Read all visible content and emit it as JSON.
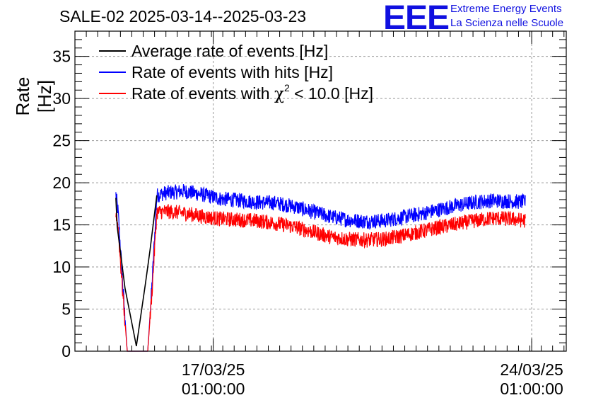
{
  "chart_data": {
    "type": "line",
    "title": "SALE-02 2025-03-14--2025-03-23",
    "xlabel": "",
    "ylabel": "Rate [Hz]",
    "ylim": [
      0,
      38
    ],
    "yticks": [
      0,
      5,
      10,
      15,
      20,
      25,
      30,
      35
    ],
    "xlim": [
      0,
      10.8
    ],
    "x_unit": "days since 2025-03-14 00:00",
    "xticks": [
      {
        "x": 3.04,
        "line1": "17/03/25",
        "line2": "01:00:00"
      },
      {
        "x": 10.04,
        "line1": "24/03/25",
        "line2": "01:00:00"
      }
    ],
    "grid": true,
    "legend_position": "top-left",
    "series": [
      {
        "name": "Average rate of events [Hz]",
        "color": "#000000",
        "x": [
          0.9,
          0.93,
          1.1,
          1.35,
          1.55,
          1.65,
          1.8
        ],
        "y": [
          18.2,
          14.8,
          7.5,
          0.6,
          8.0,
          12.0,
          18.5
        ]
      },
      {
        "name": "Rate of events with hits [Hz]",
        "color": "#0000ff",
        "x": [
          0.9,
          0.95,
          1.05,
          1.15,
          1.6,
          1.7,
          1.8,
          2.0,
          2.4,
          2.8,
          3.2,
          3.6,
          4.0,
          4.4,
          4.8,
          5.2,
          5.6,
          6.0,
          6.4,
          6.8,
          7.2,
          7.6,
          8.0,
          8.4,
          8.8,
          9.2,
          9.6,
          9.9
        ],
        "y": [
          18.6,
          16.5,
          8.0,
          0,
          0,
          8.5,
          18.5,
          18.8,
          19.0,
          18.6,
          18.1,
          17.9,
          17.7,
          17.6,
          17.2,
          16.6,
          16.0,
          15.6,
          15.4,
          15.5,
          15.9,
          16.3,
          16.8,
          17.3,
          17.7,
          17.9,
          17.8,
          17.7
        ]
      },
      {
        "name": "Rate of events with χ² < 10.0 [Hz]",
        "color": "#ff0000",
        "x": [
          0.9,
          0.95,
          1.05,
          1.15,
          1.6,
          1.7,
          1.8,
          2.0,
          2.4,
          2.8,
          3.2,
          3.6,
          4.0,
          4.4,
          4.8,
          5.2,
          5.6,
          6.0,
          6.4,
          6.8,
          7.2,
          7.6,
          8.0,
          8.4,
          8.8,
          9.2,
          9.6,
          9.9
        ],
        "y": [
          16.6,
          14.5,
          7.0,
          0,
          0,
          7.5,
          16.5,
          16.6,
          16.4,
          16.0,
          15.7,
          15.6,
          15.5,
          15.2,
          14.8,
          14.2,
          13.6,
          13.3,
          13.2,
          13.3,
          13.7,
          14.2,
          14.7,
          15.1,
          15.5,
          15.8,
          15.7,
          15.5
        ],
        "noise": 0.9
      }
    ],
    "legend": [
      {
        "label_pre": "Average rate of events [Hz]",
        "color": "#000000"
      },
      {
        "label_pre": "Rate of events with hits [Hz]",
        "color": "#0000ff"
      },
      {
        "label_pre": "Rate of events with ",
        "chi": "χ",
        "sup": "2",
        "label_post": " < 10.0 [Hz]",
        "color": "#ff0000"
      }
    ]
  },
  "logo": {
    "text": "EEE",
    "line1": "Extreme Energy Events",
    "line2": "La Scienza nelle Scuole"
  }
}
